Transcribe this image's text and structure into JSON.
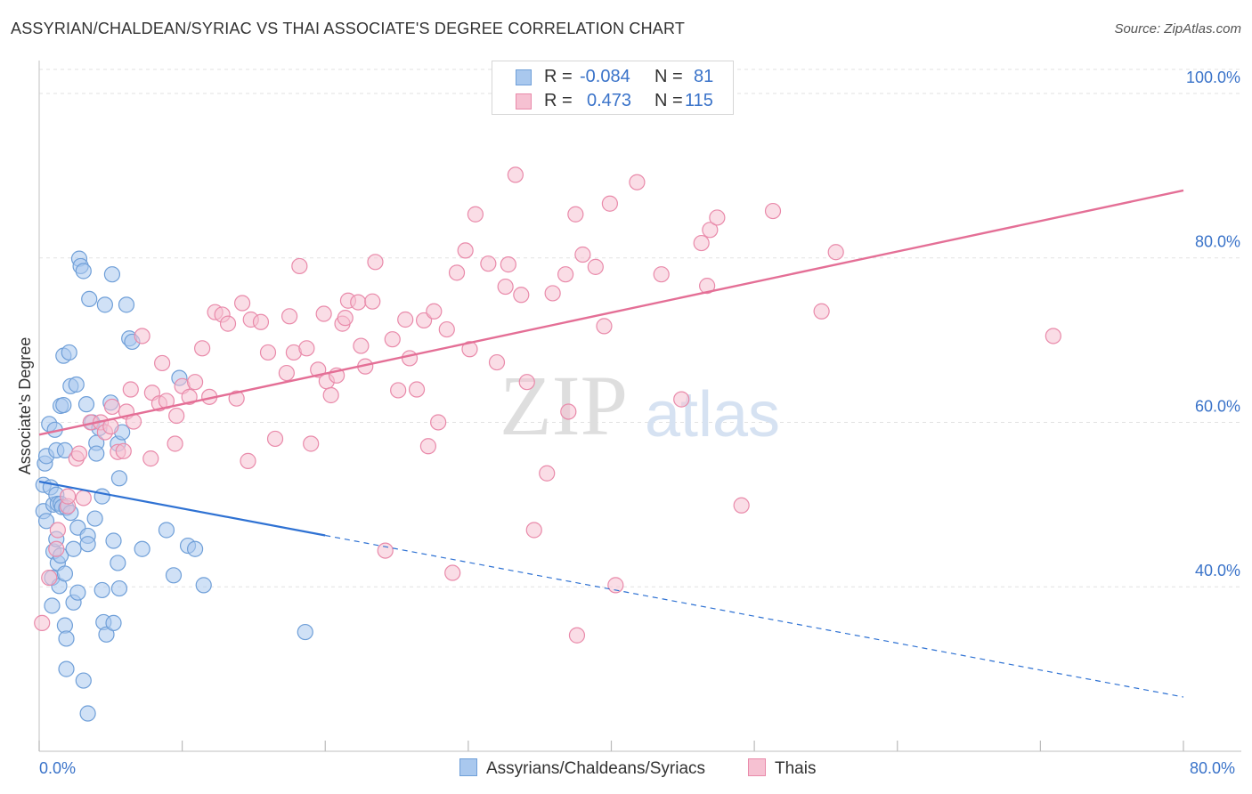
{
  "title": "ASSYRIAN/CHALDEAN/SYRIAC VS THAI ASSOCIATE'S DEGREE CORRELATION CHART",
  "source": "Source: ZipAtlas.com",
  "watermark": {
    "zip": "ZIP",
    "atlas": "atlas"
  },
  "legend": {
    "rows": [
      {
        "r_label": "R =",
        "r_value": "-0.084",
        "n_label": "N =",
        "n_value": "81"
      },
      {
        "r_label": "R =",
        "r_value": "0.473",
        "n_label": "N =",
        "n_value": "115"
      }
    ]
  },
  "bottom_legend": [
    "Assyrians/Chaldeans/Syriacs",
    "Thais"
  ],
  "colors": {
    "blue_fill": "#a9c8ee",
    "blue_stroke": "#6f9fd8",
    "blue_line": "#2f72d3",
    "pink_fill": "#f6c1d2",
    "pink_stroke": "#e98aaa",
    "pink_line": "#e46f96",
    "tick_label": "#3a73c9",
    "grid": "#e2e2e2"
  },
  "chart_data": {
    "type": "scatter",
    "title": "ASSYRIAN/CHALDEAN/SYRIAC VS THAI ASSOCIATE'S DEGREE CORRELATION CHART",
    "xlabel": "",
    "ylabel": "Associate's Degree",
    "xlim": [
      0,
      80
    ],
    "ylim": [
      20,
      104
    ],
    "x_tick_labels": [
      "0.0%",
      "80.0%"
    ],
    "y_ticks": [
      40,
      60,
      80,
      100
    ],
    "y_tick_labels": [
      "40.0%",
      "60.0%",
      "80.0%",
      "100.0%"
    ],
    "grid": true,
    "legend_position": "top-center",
    "series": [
      {
        "name": "Assyrians/Chaldeans/Syriacs",
        "r": -0.084,
        "n": 81,
        "trend": {
          "x0": 0,
          "y0": 52.8,
          "x1": 80,
          "y1": 26.6,
          "solid_until_x": 20
        },
        "points": [
          [
            0.3,
            52.4
          ],
          [
            0.3,
            49.2
          ],
          [
            0.4,
            55.0
          ],
          [
            0.5,
            55.9
          ],
          [
            0.5,
            48.0
          ],
          [
            0.7,
            59.8
          ],
          [
            0.8,
            52.1
          ],
          [
            0.9,
            41.1
          ],
          [
            0.9,
            37.7
          ],
          [
            1.0,
            50.0
          ],
          [
            1.0,
            44.3
          ],
          [
            1.1,
            59.1
          ],
          [
            1.2,
            56.6
          ],
          [
            1.2,
            51.2
          ],
          [
            1.3,
            50.1
          ],
          [
            1.2,
            45.8
          ],
          [
            1.3,
            42.9
          ],
          [
            1.4,
            40.1
          ],
          [
            1.5,
            62.0
          ],
          [
            1.5,
            43.8
          ],
          [
            1.5,
            50.1
          ],
          [
            1.6,
            49.7
          ],
          [
            1.7,
            62.1
          ],
          [
            1.7,
            68.1
          ],
          [
            1.8,
            41.6
          ],
          [
            1.8,
            35.3
          ],
          [
            1.9,
            33.7
          ],
          [
            1.9,
            30.0
          ],
          [
            1.8,
            56.6
          ],
          [
            1.9,
            49.6
          ],
          [
            2.1,
            68.5
          ],
          [
            2.2,
            64.4
          ],
          [
            2.2,
            49.0
          ],
          [
            2.4,
            44.6
          ],
          [
            2.4,
            38.1
          ],
          [
            2.6,
            64.6
          ],
          [
            2.7,
            47.2
          ],
          [
            2.7,
            39.3
          ],
          [
            2.8,
            79.9
          ],
          [
            2.9,
            79.0
          ],
          [
            3.1,
            28.6
          ],
          [
            3.1,
            78.4
          ],
          [
            3.3,
            62.2
          ],
          [
            3.4,
            24.6
          ],
          [
            3.4,
            46.2
          ],
          [
            3.4,
            45.2
          ],
          [
            3.5,
            75.0
          ],
          [
            3.7,
            60.0
          ],
          [
            3.9,
            48.3
          ],
          [
            4.0,
            57.5
          ],
          [
            4.0,
            56.2
          ],
          [
            4.2,
            59.3
          ],
          [
            4.4,
            51.0
          ],
          [
            4.4,
            39.6
          ],
          [
            4.5,
            35.7
          ],
          [
            4.6,
            74.3
          ],
          [
            4.7,
            34.2
          ],
          [
            5.0,
            62.4
          ],
          [
            5.1,
            78.0
          ],
          [
            5.2,
            45.6
          ],
          [
            5.2,
            35.6
          ],
          [
            5.5,
            42.9
          ],
          [
            5.5,
            57.4
          ],
          [
            5.6,
            53.2
          ],
          [
            5.6,
            39.8
          ],
          [
            5.8,
            58.8
          ],
          [
            6.1,
            74.3
          ],
          [
            6.3,
            70.2
          ],
          [
            6.5,
            69.8
          ],
          [
            7.2,
            44.6
          ],
          [
            8.9,
            46.9
          ],
          [
            9.4,
            41.4
          ],
          [
            9.8,
            65.4
          ],
          [
            10.4,
            45.0
          ],
          [
            10.9,
            44.6
          ],
          [
            11.5,
            40.2
          ],
          [
            18.6,
            34.5
          ]
        ]
      },
      {
        "name": "Thais",
        "r": 0.473,
        "n": 115,
        "trend": {
          "x0": 0,
          "y0": 58.5,
          "x1": 80,
          "y1": 88.2
        },
        "points": [
          [
            0.2,
            35.6
          ],
          [
            0.7,
            41.1
          ],
          [
            1.2,
            44.6
          ],
          [
            1.3,
            46.9
          ],
          [
            2.0,
            49.8
          ],
          [
            2.0,
            51.0
          ],
          [
            2.6,
            55.6
          ],
          [
            2.8,
            56.2
          ],
          [
            3.1,
            50.8
          ],
          [
            3.6,
            60.0
          ],
          [
            4.3,
            60.0
          ],
          [
            4.6,
            58.8
          ],
          [
            5.0,
            59.5
          ],
          [
            5.1,
            61.9
          ],
          [
            5.5,
            56.4
          ],
          [
            5.9,
            56.5
          ],
          [
            6.1,
            61.3
          ],
          [
            6.4,
            64.0
          ],
          [
            6.6,
            60.1
          ],
          [
            7.2,
            70.5
          ],
          [
            7.8,
            55.6
          ],
          [
            7.9,
            63.6
          ],
          [
            8.4,
            62.3
          ],
          [
            8.6,
            67.2
          ],
          [
            8.9,
            62.6
          ],
          [
            9.5,
            57.4
          ],
          [
            9.6,
            60.8
          ],
          [
            10.0,
            64.4
          ],
          [
            10.5,
            63.1
          ],
          [
            10.9,
            64.9
          ],
          [
            11.4,
            69.0
          ],
          [
            11.9,
            63.1
          ],
          [
            12.3,
            73.4
          ],
          [
            12.8,
            73.1
          ],
          [
            13.2,
            72.0
          ],
          [
            13.8,
            62.9
          ],
          [
            14.2,
            74.5
          ],
          [
            14.6,
            55.3
          ],
          [
            14.8,
            72.5
          ],
          [
            15.5,
            72.2
          ],
          [
            16.0,
            68.5
          ],
          [
            16.5,
            58.0
          ],
          [
            17.3,
            66.0
          ],
          [
            17.5,
            72.9
          ],
          [
            17.8,
            68.5
          ],
          [
            18.2,
            79.0
          ],
          [
            18.7,
            69.0
          ],
          [
            19.0,
            57.4
          ],
          [
            19.5,
            66.4
          ],
          [
            19.9,
            73.2
          ],
          [
            20.1,
            65.0
          ],
          [
            20.4,
            63.3
          ],
          [
            20.8,
            65.7
          ],
          [
            21.2,
            72.0
          ],
          [
            21.4,
            72.7
          ],
          [
            21.6,
            74.8
          ],
          [
            22.3,
            74.6
          ],
          [
            22.5,
            69.3
          ],
          [
            22.8,
            66.8
          ],
          [
            23.3,
            74.7
          ],
          [
            23.5,
            79.5
          ],
          [
            24.2,
            44.4
          ],
          [
            24.7,
            70.1
          ],
          [
            25.1,
            63.9
          ],
          [
            25.6,
            72.5
          ],
          [
            25.9,
            67.8
          ],
          [
            26.4,
            64.0
          ],
          [
            26.9,
            72.4
          ],
          [
            27.2,
            57.1
          ],
          [
            27.6,
            73.5
          ],
          [
            27.9,
            60.0
          ],
          [
            28.5,
            71.3
          ],
          [
            28.9,
            41.7
          ],
          [
            29.2,
            78.2
          ],
          [
            29.8,
            80.9
          ],
          [
            30.1,
            68.9
          ],
          [
            30.5,
            85.3
          ],
          [
            31.4,
            79.3
          ],
          [
            32.0,
            67.3
          ],
          [
            32.6,
            76.5
          ],
          [
            32.8,
            79.2
          ],
          [
            33.3,
            90.1
          ],
          [
            33.7,
            75.5
          ],
          [
            34.1,
            64.9
          ],
          [
            34.6,
            46.9
          ],
          [
            35.5,
            53.8
          ],
          [
            35.9,
            75.7
          ],
          [
            36.8,
            78.0
          ],
          [
            37.0,
            61.3
          ],
          [
            37.5,
            85.3
          ],
          [
            37.6,
            34.1
          ],
          [
            38.0,
            80.4
          ],
          [
            38.9,
            78.9
          ],
          [
            39.5,
            71.7
          ],
          [
            39.9,
            86.6
          ],
          [
            40.3,
            40.2
          ],
          [
            41.8,
            89.2
          ],
          [
            43.5,
            78.0
          ],
          [
            44.9,
            62.8
          ],
          [
            46.3,
            81.8
          ],
          [
            46.7,
            76.6
          ],
          [
            46.9,
            83.4
          ],
          [
            47.4,
            84.9
          ],
          [
            49.1,
            49.9
          ],
          [
            51.3,
            85.7
          ],
          [
            54.7,
            73.5
          ],
          [
            55.7,
            80.7
          ],
          [
            70.9,
            70.5
          ]
        ]
      }
    ]
  }
}
